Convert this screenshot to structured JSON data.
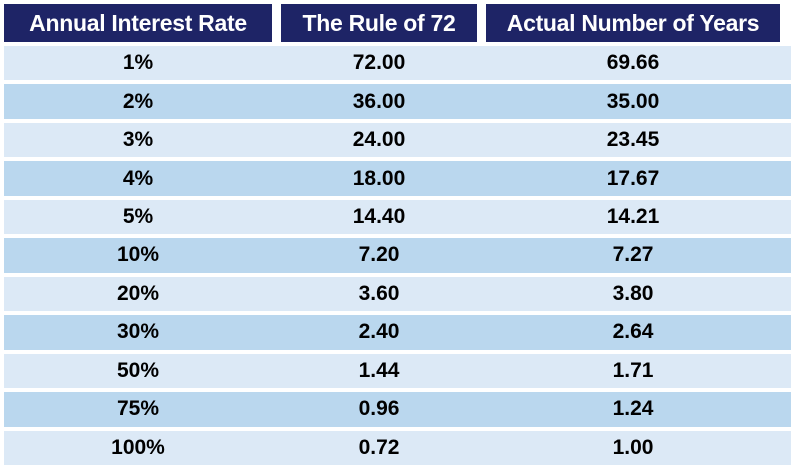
{
  "colors": {
    "background": "#ffffff",
    "header_bg": "#1e2466",
    "header_text": "#ffffff",
    "row_light": "#dce9f6",
    "row_dark": "#bad7ee",
    "body_text": "#000000"
  },
  "chart_data": {
    "type": "table",
    "columns": [
      "Annual Interest Rate",
      "The Rule of 72",
      "Actual Number of Years"
    ],
    "rows": [
      {
        "rate": "1%",
        "rule_of_72": "72.00",
        "actual_years": "69.66"
      },
      {
        "rate": "2%",
        "rule_of_72": "36.00",
        "actual_years": "35.00"
      },
      {
        "rate": "3%",
        "rule_of_72": "24.00",
        "actual_years": "23.45"
      },
      {
        "rate": "4%",
        "rule_of_72": "18.00",
        "actual_years": "17.67"
      },
      {
        "rate": "5%",
        "rule_of_72": "14.40",
        "actual_years": "14.21"
      },
      {
        "rate": "10%",
        "rule_of_72": "7.20",
        "actual_years": "7.27"
      },
      {
        "rate": "20%",
        "rule_of_72": "3.60",
        "actual_years": "3.80"
      },
      {
        "rate": "30%",
        "rule_of_72": "2.40",
        "actual_years": "2.64"
      },
      {
        "rate": "50%",
        "rule_of_72": "1.44",
        "actual_years": "1.71"
      },
      {
        "rate": "75%",
        "rule_of_72": "0.96",
        "actual_years": "1.24"
      },
      {
        "rate": "100%",
        "rule_of_72": "0.72",
        "actual_years": "1.00"
      }
    ]
  }
}
